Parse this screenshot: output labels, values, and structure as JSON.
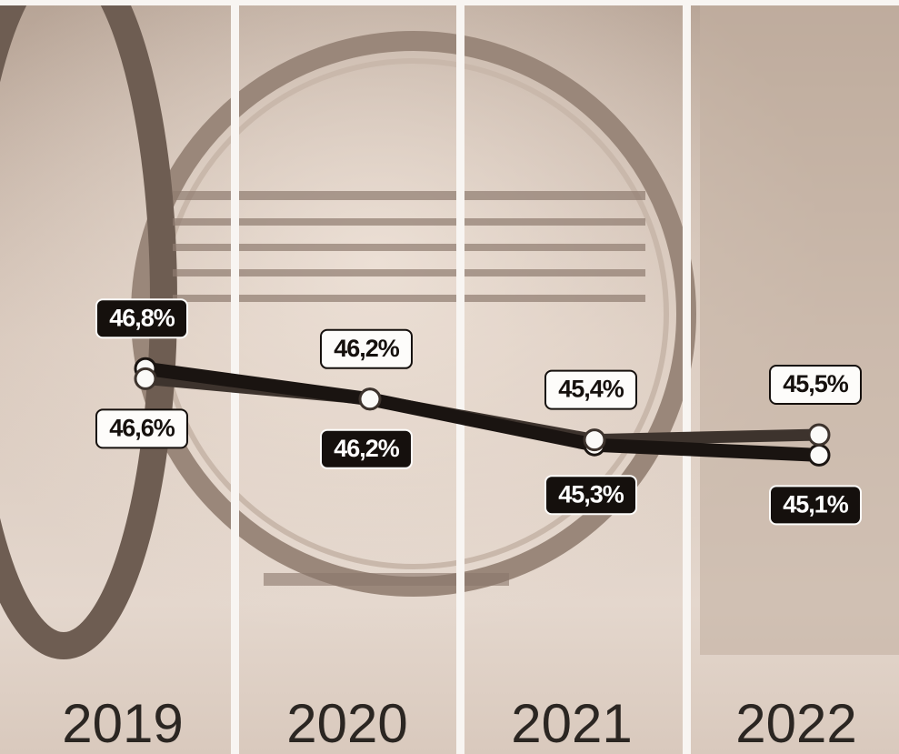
{
  "chart_data": {
    "type": "line",
    "categories": [
      "2019",
      "2020",
      "2021",
      "2022"
    ],
    "ylim": [
      44,
      48
    ],
    "series": [
      {
        "color": "#1a1411",
        "values": [
          46.8,
          46.2,
          45.3,
          45.1
        ],
        "value_labels": [
          "46,8%",
          "46,2%",
          "45,3%",
          "45,1%"
        ]
      },
      {
        "color": "#3d332d",
        "values": [
          46.6,
          46.2,
          45.4,
          45.5
        ],
        "value_labels": [
          "46,6%",
          "46,2%",
          "45,4%",
          "45,5%"
        ]
      }
    ]
  }
}
